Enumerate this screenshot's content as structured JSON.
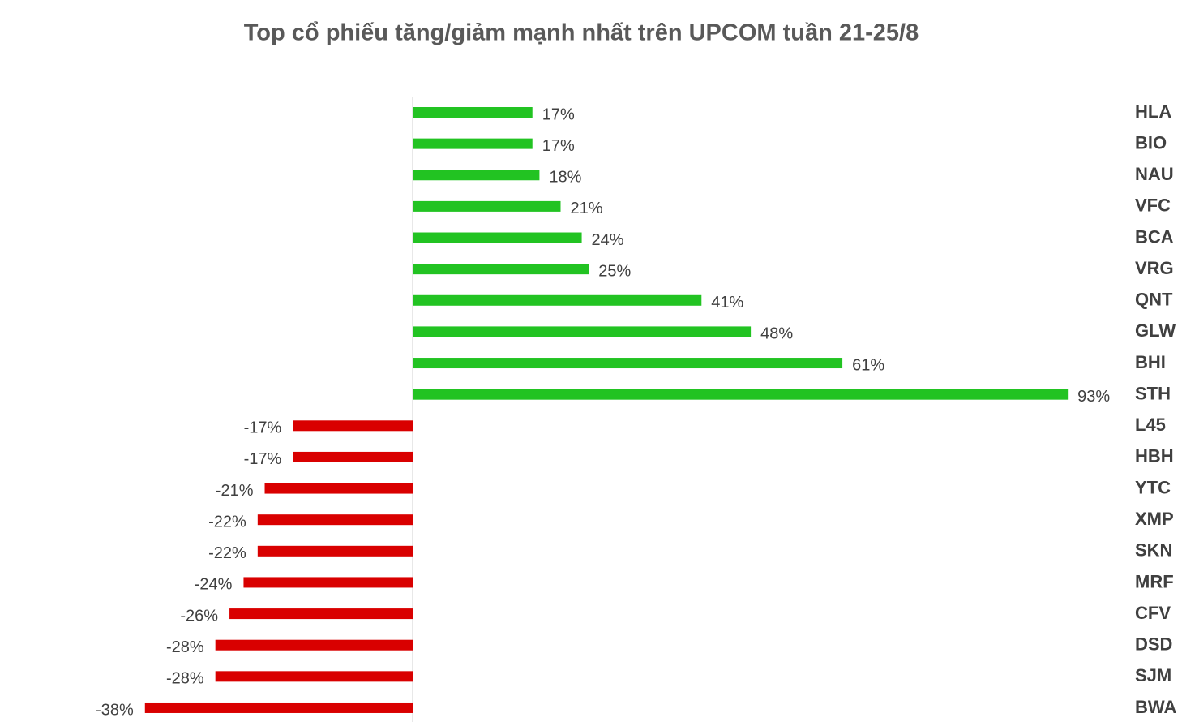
{
  "chart_data": {
    "type": "bar",
    "orientation": "horizontal",
    "title": "Top cổ phiếu tăng/giảm mạnh nhất trên UPCOM tuần 21-25/8",
    "categories": [
      "HLA",
      "BIO",
      "NAU",
      "VFC",
      "BCA",
      "VRG",
      "QNT",
      "GLW",
      "BHI",
      "STH",
      "L45",
      "HBH",
      "YTC",
      "XMP",
      "SKN",
      "MRF",
      "CFV",
      "DSD",
      "SJM",
      "BWA"
    ],
    "values": [
      17,
      17,
      18,
      21,
      24,
      25,
      41,
      48,
      61,
      93,
      -17,
      -17,
      -21,
      -22,
      -22,
      -24,
      -26,
      -28,
      -28,
      -38
    ],
    "value_labels": [
      "17%",
      "17%",
      "18%",
      "21%",
      "24%",
      "25%",
      "41%",
      "48%",
      "61%",
      "93%",
      "-17%",
      "-17%",
      "-21%",
      "-22%",
      "-22%",
      "-24%",
      "-26%",
      "-28%",
      "-28%",
      "-38%"
    ],
    "color": "#22c322",
    "negative_color": "#d90000"
  }
}
